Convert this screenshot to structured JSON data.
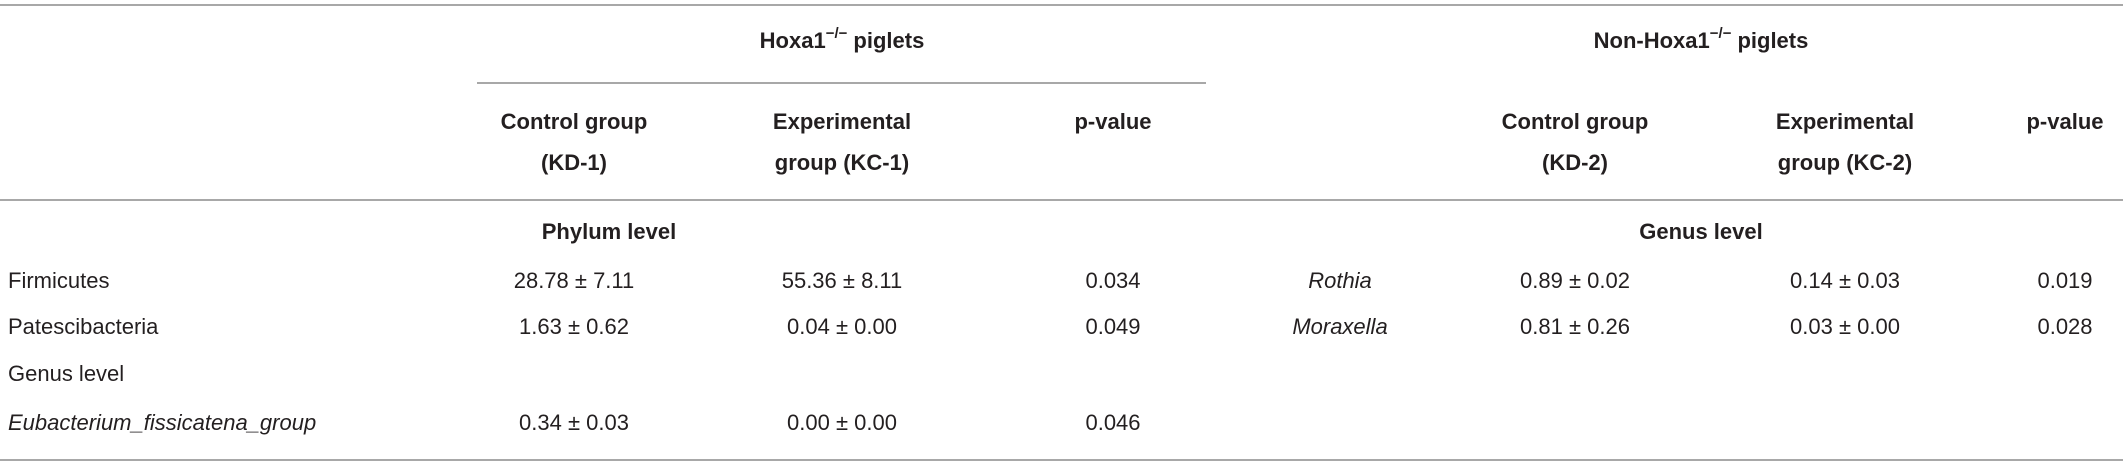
{
  "header": {
    "left_group": {
      "name": "Hoxa1",
      "superscript": "−/−",
      "suffix": "piglets"
    },
    "right_group": {
      "name": "Non-Hoxa1",
      "superscript": "−/−",
      "suffix": "piglets"
    },
    "left_columns": [
      [
        "Control group",
        "(KD-1)"
      ],
      [
        "Experimental",
        "group (KC-1)"
      ],
      [
        "p-value"
      ]
    ],
    "right_columns": [
      [
        "Control group",
        "(KD-2)"
      ],
      [
        "Experimental",
        "group (KC-2)"
      ],
      [
        "p-value"
      ]
    ]
  },
  "left_table": {
    "section": "Phylum level",
    "rows": [
      {
        "name": "Firmicutes",
        "control": "28.78 ± 7.11",
        "experimental": "55.36 ± 8.11",
        "p": "0.034"
      },
      {
        "name": "Patescibacteria",
        "control": "1.63 ± 0.62",
        "experimental": "0.04 ± 0.00",
        "p": "0.049"
      }
    ],
    "subsection": "Genus level",
    "sub_rows": [
      {
        "name": "Eubacterium_fissicatena_group",
        "control": "0.34 ± 0.03",
        "experimental": "0.00 ± 0.00",
        "p": "0.046"
      }
    ]
  },
  "right_table": {
    "section": "Genus level",
    "rows": [
      {
        "name": "Rothia",
        "control": "0.89 ± 0.02",
        "experimental": "0.14 ± 0.03",
        "p": "0.019"
      },
      {
        "name": "Moraxella",
        "control": "0.81 ± 0.26",
        "experimental": "0.03 ± 0.00",
        "p": "0.028"
      }
    ]
  }
}
